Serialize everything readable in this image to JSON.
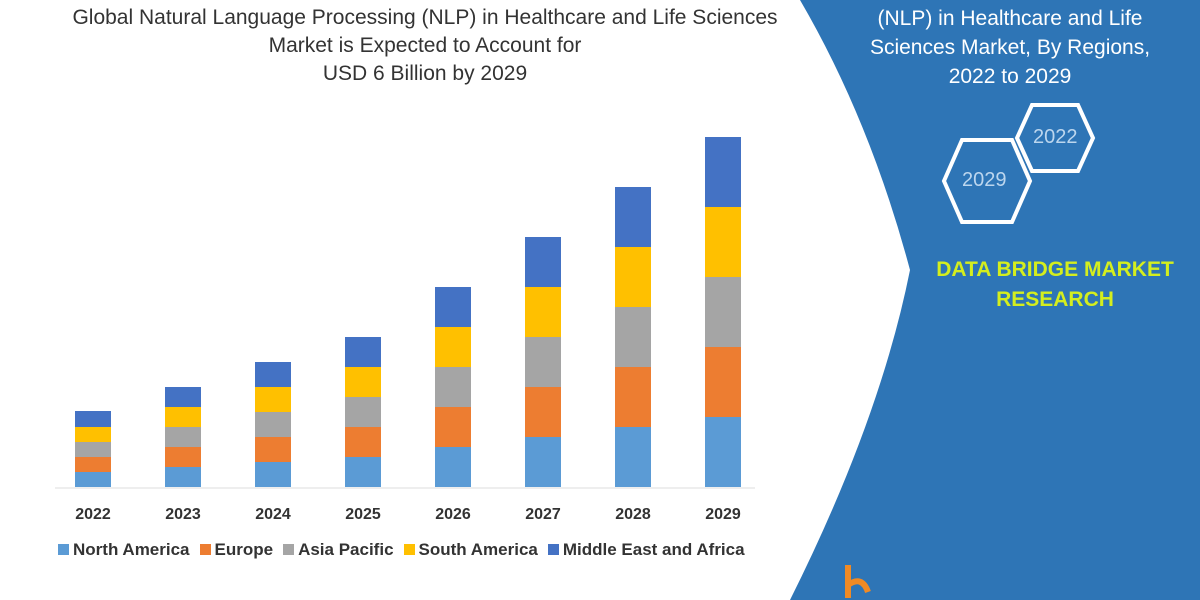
{
  "title_lines": [
    "Global Natural Language Processing (NLP) in Healthcare and Life Sciences",
    "Market is Expected to Account for",
    "USD 6 Billion by 2029"
  ],
  "side_title_lines": [
    "(NLP) in Healthcare and Life",
    "Sciences Market, By Regions,",
    "2022 to 2029"
  ],
  "hexagons": [
    "2022",
    "2029"
  ],
  "brand_lines": [
    "DATA BRIDGE MARKET",
    "RESEARCH"
  ],
  "colors": {
    "panel": "#2e75b6",
    "brand_text": "#d4ee1e"
  },
  "chart_data": {
    "type": "bar",
    "stacked": true,
    "categories": [
      "2022",
      "2023",
      "2024",
      "2025",
      "2026",
      "2027",
      "2028",
      "2029"
    ],
    "series": [
      {
        "name": "North America",
        "color": "#5b9bd5",
        "values": [
          15,
          20,
          25,
          30,
          40,
          50,
          60,
          70
        ]
      },
      {
        "name": "Europe",
        "color": "#ed7d31",
        "values": [
          15,
          20,
          25,
          30,
          40,
          50,
          60,
          70
        ]
      },
      {
        "name": "Asia Pacific",
        "color": "#a5a5a5",
        "values": [
          15,
          20,
          25,
          30,
          40,
          50,
          60,
          70
        ]
      },
      {
        "name": "South America",
        "color": "#ffc000",
        "values": [
          15,
          20,
          25,
          30,
          40,
          50,
          60,
          70
        ]
      },
      {
        "name": "Middle East and Africa",
        "color": "#4472c4",
        "values": [
          16,
          20,
          25,
          30,
          40,
          50,
          60,
          70
        ]
      }
    ],
    "y_axis_shown": false,
    "grid": false,
    "legend_position": "bottom"
  }
}
